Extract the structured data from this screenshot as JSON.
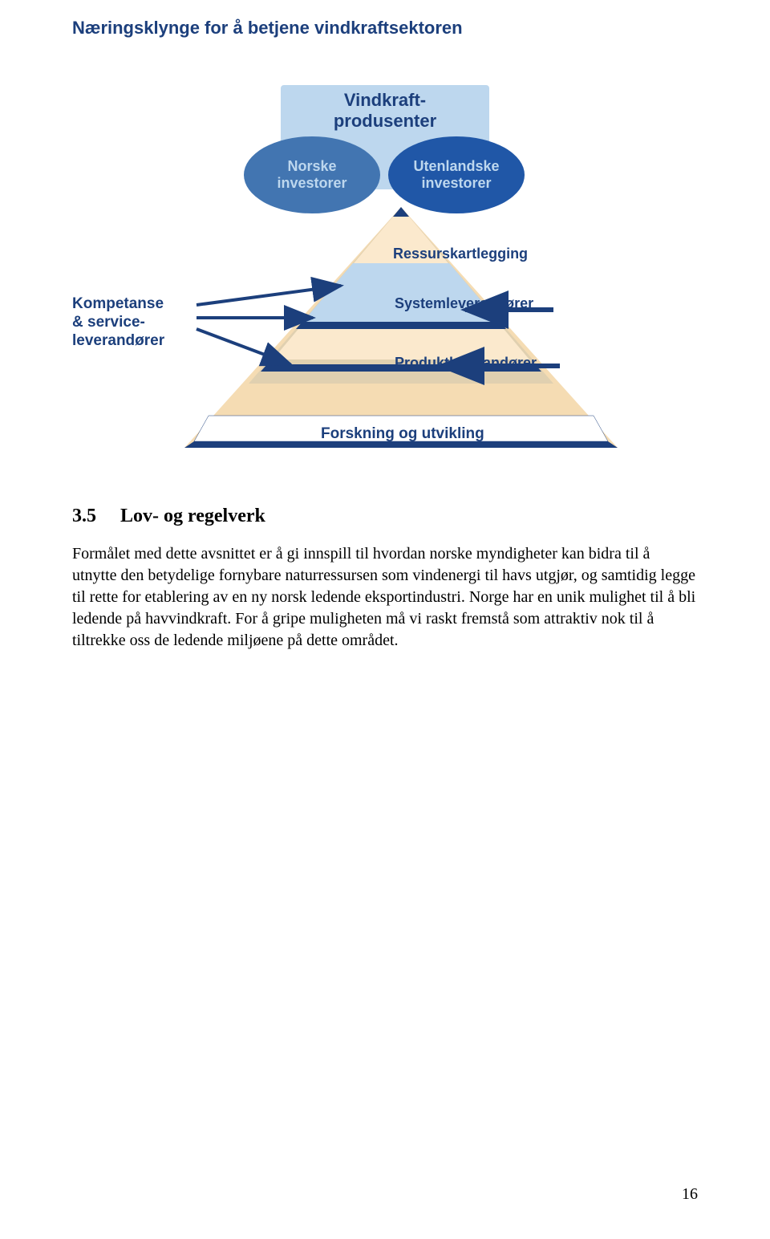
{
  "page": {
    "title": "Næringsklynge for å betjene vindkraftsektoren",
    "pageNumber": "16"
  },
  "diagram": {
    "headbox": "Vindkraft-\nprodusenter",
    "ovalLeft": "Norske\ninvestorer",
    "ovalRight": "Utenlandske\ninvestorer",
    "sideLabel": "Kompetanse\n& service-\nleverandører",
    "labels": {
      "ress": "Ressurskartlegging",
      "sys": "Systemleverandører",
      "prod": "Produktleverandører",
      "fou": "Forskning og utvikling"
    },
    "colors": {
      "boxFill": "#bdd7ee",
      "ovalA": "#4275b1",
      "ovalB": "#2057a7",
      "text": "#1c3f7c",
      "pyramidOuter": "#f5dcb3",
      "pyramidInnerA": "#fbe9cd",
      "pyramidInnerB": "#e0d0b0",
      "bandDark": "#1c3f7c",
      "bandBlue": "#bdd7ee",
      "arrow": "#1c3f7c"
    }
  },
  "section": {
    "number": "3.5",
    "heading": "Lov- og regelverk",
    "body": "Formålet med dette avsnittet er å gi innspill til hvordan norske myndigheter kan bidra til å utnytte den betydelige fornybare naturressursen som vindenergi til havs utgjør, og samtidig legge til rette for etablering av en ny norsk ledende eksportindustri. Norge har en unik mulighet til å bli ledende på havvindkraft. For å gripe muligheten må vi raskt fremstå som attraktiv nok til å tiltrekke oss de ledende miljøene på dette området."
  }
}
